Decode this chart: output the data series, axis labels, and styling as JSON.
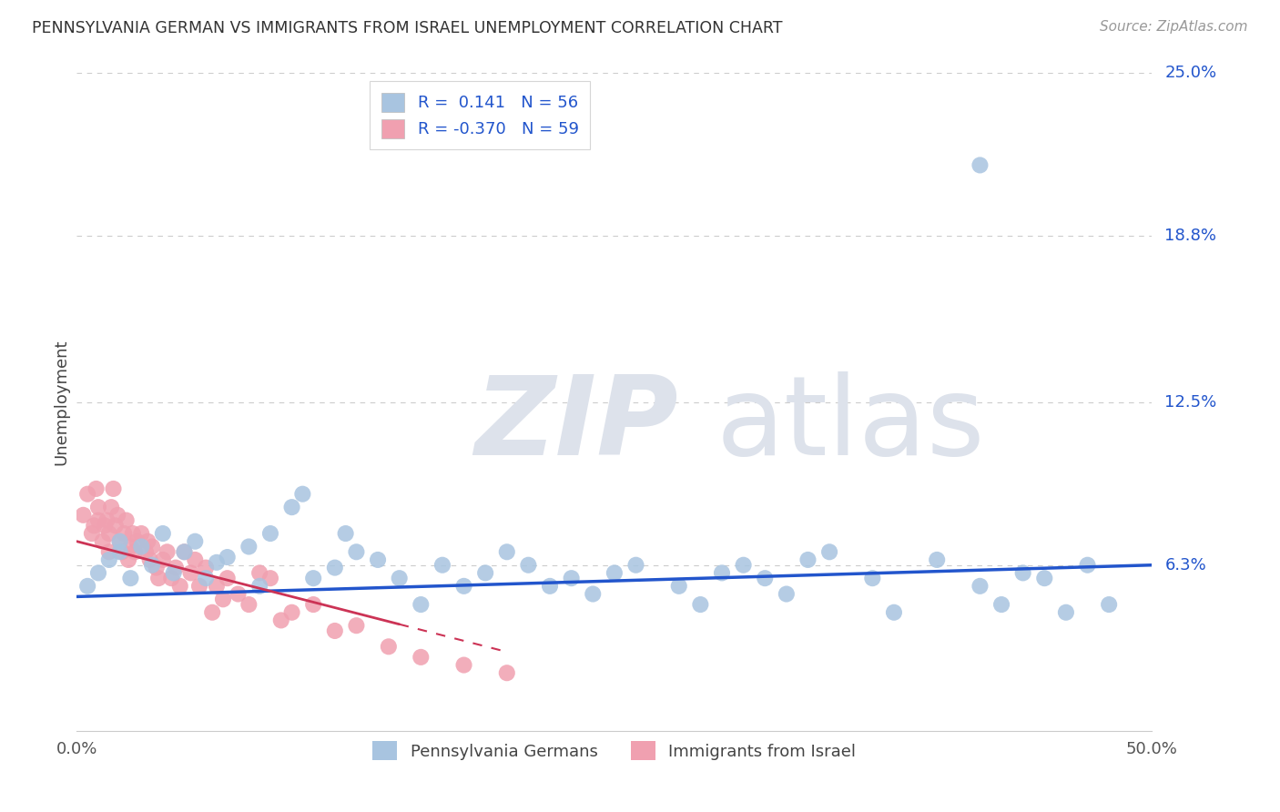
{
  "title": "PENNSYLVANIA GERMAN VS IMMIGRANTS FROM ISRAEL UNEMPLOYMENT CORRELATION CHART",
  "source": "Source: ZipAtlas.com",
  "ylabel": "Unemployment",
  "xlim": [
    0.0,
    0.5
  ],
  "ylim": [
    0.0,
    0.25
  ],
  "yticks": [
    0.063,
    0.125,
    0.188,
    0.25
  ],
  "ytick_labels": [
    "6.3%",
    "12.5%",
    "18.8%",
    "25.0%"
  ],
  "blue_R": 0.141,
  "blue_N": 56,
  "pink_R": -0.37,
  "pink_N": 59,
  "blue_color": "#a8c4e0",
  "pink_color": "#f0a0b0",
  "blue_line_color": "#2255cc",
  "pink_line_color": "#cc3355",
  "watermark": "ZIPatlas",
  "watermark_color": "#dde2eb",
  "legend_label_blue": "Pennsylvania Germans",
  "legend_label_pink": "Immigrants from Israel",
  "blue_x": [
    0.005,
    0.01,
    0.015,
    0.02,
    0.02,
    0.025,
    0.03,
    0.035,
    0.04,
    0.045,
    0.05,
    0.055,
    0.06,
    0.065,
    0.07,
    0.08,
    0.085,
    0.09,
    0.1,
    0.105,
    0.11,
    0.12,
    0.125,
    0.13,
    0.14,
    0.15,
    0.16,
    0.17,
    0.18,
    0.19,
    0.2,
    0.21,
    0.22,
    0.23,
    0.24,
    0.25,
    0.26,
    0.28,
    0.29,
    0.3,
    0.31,
    0.32,
    0.33,
    0.34,
    0.35,
    0.37,
    0.38,
    0.4,
    0.42,
    0.43,
    0.44,
    0.45,
    0.46,
    0.47,
    0.48,
    0.42
  ],
  "blue_y": [
    0.055,
    0.06,
    0.065,
    0.068,
    0.072,
    0.058,
    0.07,
    0.063,
    0.075,
    0.06,
    0.068,
    0.072,
    0.058,
    0.064,
    0.066,
    0.07,
    0.055,
    0.075,
    0.085,
    0.09,
    0.058,
    0.062,
    0.075,
    0.068,
    0.065,
    0.058,
    0.048,
    0.063,
    0.055,
    0.06,
    0.068,
    0.063,
    0.055,
    0.058,
    0.052,
    0.06,
    0.063,
    0.055,
    0.048,
    0.06,
    0.063,
    0.058,
    0.052,
    0.065,
    0.068,
    0.058,
    0.045,
    0.065,
    0.055,
    0.048,
    0.06,
    0.058,
    0.045,
    0.063,
    0.048,
    0.215
  ],
  "pink_x": [
    0.003,
    0.005,
    0.007,
    0.008,
    0.009,
    0.01,
    0.01,
    0.012,
    0.013,
    0.014,
    0.015,
    0.015,
    0.016,
    0.017,
    0.018,
    0.019,
    0.02,
    0.021,
    0.022,
    0.023,
    0.024,
    0.025,
    0.026,
    0.027,
    0.028,
    0.03,
    0.032,
    0.033,
    0.034,
    0.035,
    0.037,
    0.038,
    0.04,
    0.042,
    0.044,
    0.046,
    0.048,
    0.05,
    0.053,
    0.055,
    0.057,
    0.06,
    0.063,
    0.065,
    0.068,
    0.07,
    0.075,
    0.08,
    0.085,
    0.09,
    0.095,
    0.1,
    0.11,
    0.12,
    0.13,
    0.145,
    0.16,
    0.18,
    0.2
  ],
  "pink_y": [
    0.082,
    0.09,
    0.075,
    0.078,
    0.092,
    0.08,
    0.085,
    0.072,
    0.078,
    0.08,
    0.075,
    0.068,
    0.085,
    0.092,
    0.078,
    0.082,
    0.072,
    0.068,
    0.075,
    0.08,
    0.065,
    0.07,
    0.075,
    0.068,
    0.072,
    0.075,
    0.068,
    0.072,
    0.065,
    0.07,
    0.062,
    0.058,
    0.065,
    0.068,
    0.058,
    0.062,
    0.055,
    0.068,
    0.06,
    0.065,
    0.055,
    0.062,
    0.045,
    0.055,
    0.05,
    0.058,
    0.052,
    0.048,
    0.06,
    0.058,
    0.042,
    0.045,
    0.048,
    0.038,
    0.04,
    0.032,
    0.028,
    0.025,
    0.022
  ],
  "blue_line_x": [
    0.0,
    0.5
  ],
  "blue_line_y": [
    0.051,
    0.063
  ],
  "pink_line_x0": 0.0,
  "pink_line_x1": 0.2,
  "pink_line_y0": 0.072,
  "pink_line_y1": 0.03,
  "fig_width": 14.06,
  "fig_height": 8.92,
  "dpi": 100
}
